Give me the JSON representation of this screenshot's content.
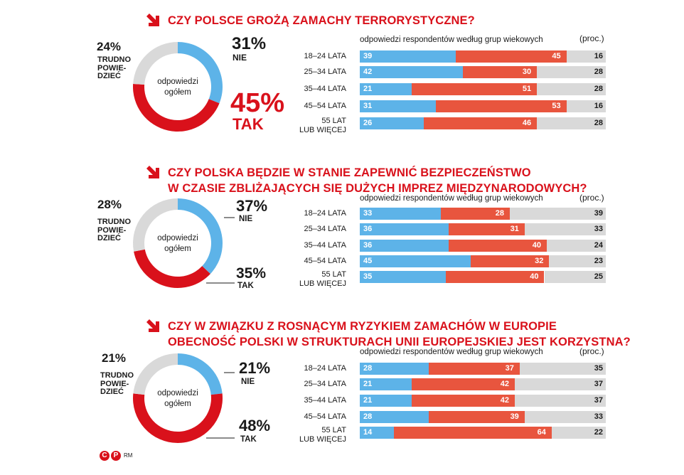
{
  "colors": {
    "accent": "#d9111b",
    "no": "#5db3e8",
    "yes": "#e8553e",
    "unknown": "#d9d9d9",
    "donut_yes": "#d9111b"
  },
  "chart_data": [
    {
      "type": "bar",
      "title": "CZY POLSCE GROŻĄ ZAMACHY TERRORYSTYCZNE?",
      "title_lines": [
        "CZY POLSCE GROŻĄ ZAMACHY TERRORYSTYCZNE?"
      ],
      "overall": {
        "center_label": [
          "odpowiedzi",
          "ogółem"
        ],
        "no": {
          "value": 31,
          "text": "31%",
          "label": [
            "NIE"
          ]
        },
        "yes": {
          "value": 45,
          "text": "45%",
          "label": [
            "TAK"
          ]
        },
        "unknown": {
          "value": 24,
          "text": "24%",
          "label": [
            "TRUDNO",
            "POWIE-",
            "DZIEĆ"
          ]
        }
      },
      "bar_caption": "odpowiedzi respondentów według grup wiekowych",
      "unit": "(proc.)",
      "categories": [
        [
          "18–24 LATA"
        ],
        [
          "25–34 LATA"
        ],
        [
          "35–44 LATA"
        ],
        [
          "45–54 LATA"
        ],
        [
          "55 LAT",
          "LUB WIĘCEJ"
        ]
      ],
      "series": [
        {
          "name": "NIE",
          "values": [
            39,
            42,
            21,
            31,
            26
          ]
        },
        {
          "name": "TAK",
          "values": [
            45,
            30,
            51,
            53,
            46
          ]
        },
        {
          "name": "TRUDNO POWIEDZIEĆ",
          "values": [
            16,
            28,
            28,
            16,
            28
          ]
        }
      ]
    },
    {
      "type": "bar",
      "title": "CZY POLSKA BĘDZIE W STANIE ZAPEWNIĆ BEZPIECZEŃSTWO W CZASIE ZBLIŻAJĄCYCH SIĘ DUŻYCH IMPREZ MIĘDZYNARODOWYCH?",
      "title_lines": [
        "CZY POLSKA BĘDZIE W STANIE ZAPEWNIĆ BEZPIECZEŃSTWO",
        "W CZASIE ZBLIŻAJĄCYCH SIĘ DUŻYCH IMPREZ MIĘDZYNARODOWYCH?"
      ],
      "overall": {
        "center_label": [
          "odpowiedzi",
          "ogółem"
        ],
        "no": {
          "value": 37,
          "text": "37%",
          "label": [
            "NIE"
          ]
        },
        "yes": {
          "value": 35,
          "text": "35%",
          "label": [
            "TAK"
          ]
        },
        "unknown": {
          "value": 28,
          "text": "28%",
          "label": [
            "TRUDNO",
            "POWIE-",
            "DZIEĆ"
          ]
        }
      },
      "bar_caption": "odpowiedzi respondentów według grup wiekowych",
      "unit": "(proc.)",
      "categories": [
        [
          "18–24 LATA"
        ],
        [
          "25–34 LATA"
        ],
        [
          "35–44 LATA"
        ],
        [
          "45–54 LATA"
        ],
        [
          "55 LAT",
          "LUB WIĘCEJ"
        ]
      ],
      "series": [
        {
          "name": "NIE",
          "values": [
            33,
            36,
            36,
            45,
            35
          ]
        },
        {
          "name": "TAK",
          "values": [
            28,
            31,
            40,
            32,
            40
          ]
        },
        {
          "name": "TRUDNO POWIEDZIEĆ",
          "values": [
            39,
            33,
            24,
            23,
            25
          ]
        }
      ]
    },
    {
      "type": "bar",
      "title": "CZY W ZWIĄZKU Z ROSNĄCYM RYZYKIEM ZAMACHÓW W EUROPIE OBECNOŚĆ POLSKI W STRUKTURACH UNII EUROPEJSKIEJ JEST KORZYSTNA?",
      "title_lines": [
        "CZY W ZWIĄZKU Z ROSNĄCYM RYZYKIEM ZAMACHÓW W EUROPIE",
        "OBECNOŚĆ POLSKI W STRUKTURACH UNII EUROPEJSKIEJ JEST KORZYSTNA?"
      ],
      "overall": {
        "center_label": [
          "odpowiedzi",
          "ogółem"
        ],
        "no": {
          "value": 21,
          "text": "21%",
          "label": [
            "NIE"
          ]
        },
        "yes": {
          "value": 48,
          "text": "48%",
          "label": [
            "TAK"
          ]
        },
        "unknown": {
          "value": 21,
          "text": "21%",
          "label": [
            "TRUDNO",
            "POWIE-",
            "DZIEĆ"
          ]
        }
      },
      "bar_caption": "odpowiedzi respondentów według grup wiekowych",
      "unit": "(proc.)",
      "categories": [
        [
          "18–24 LATA"
        ],
        [
          "25–34 LATA"
        ],
        [
          "35–44 LATA"
        ],
        [
          "45–54 LATA"
        ],
        [
          "55 LAT",
          "LUB WIĘCEJ"
        ]
      ],
      "series": [
        {
          "name": "NIE",
          "values": [
            28,
            21,
            21,
            28,
            14
          ]
        },
        {
          "name": "TAK",
          "values": [
            37,
            42,
            42,
            39,
            64
          ]
        },
        {
          "name": "TRUDNO POWIEDZIEĆ",
          "values": [
            35,
            37,
            37,
            33,
            22
          ]
        }
      ]
    }
  ],
  "footer": {
    "logo_letters": [
      "C",
      "P"
    ],
    "credit": "RM"
  }
}
